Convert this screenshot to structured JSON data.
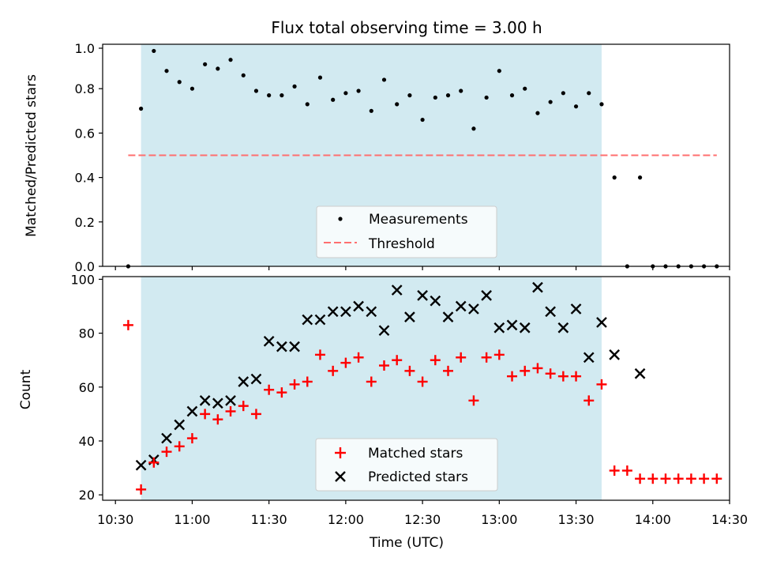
{
  "title": "Flux total observing time = 3.00 h",
  "colors": {
    "band": "#add8e6",
    "threshold": "#ff6f6f",
    "matched": "#ff0000",
    "predicted": "#000000",
    "measurement": "#000000"
  },
  "chart_data": [
    {
      "type": "scatter",
      "ylabel": "Matched/Predicted stars",
      "ylim": [
        0,
        1.0
      ],
      "yticks": [
        "0.0",
        "0.2",
        "0.4",
        "0.6",
        "0.8",
        "1.0"
      ],
      "shaded_band": [
        "10:40",
        "13:40"
      ],
      "legend": "lower-center",
      "series": [
        {
          "name": "Measurements",
          "marker": "dot",
          "x": [
            "10:35",
            "10:40",
            "10:45",
            "10:50",
            "10:55",
            "11:00",
            "11:05",
            "11:10",
            "11:15",
            "11:20",
            "11:25",
            "11:30",
            "11:35",
            "11:40",
            "11:45",
            "11:50",
            "11:55",
            "12:00",
            "12:05",
            "12:10",
            "12:15",
            "12:20",
            "12:25",
            "12:30",
            "12:35",
            "12:40",
            "12:45",
            "12:50",
            "12:55",
            "13:00",
            "13:05",
            "13:10",
            "13:15",
            "13:20",
            "13:25",
            "13:30",
            "13:35",
            "13:40",
            "13:45",
            "13:50",
            "13:55",
            "14:00",
            "14:05",
            "14:10",
            "14:15",
            "14:20",
            "14:25"
          ],
          "y": [
            0.0,
            0.71,
            0.97,
            0.88,
            0.83,
            0.8,
            0.91,
            0.89,
            0.93,
            0.86,
            0.79,
            0.77,
            0.77,
            0.81,
            0.73,
            0.85,
            0.75,
            0.78,
            0.79,
            0.7,
            0.84,
            0.73,
            0.77,
            0.66,
            0.76,
            0.77,
            0.79,
            0.62,
            0.76,
            0.88,
            0.77,
            0.8,
            0.69,
            0.74,
            0.78,
            0.72,
            0.78,
            0.73,
            0.4,
            0.0,
            0.4,
            0.0,
            0.0,
            0.0,
            0.0,
            0.0,
            0.0
          ]
        },
        {
          "name": "Threshold",
          "line": "dashed",
          "x": [
            "10:35",
            "14:25"
          ],
          "y": [
            0.5,
            0.5
          ]
        }
      ]
    },
    {
      "type": "scatter",
      "xlabel": "Time (UTC)",
      "ylabel": "Count",
      "ylim": [
        18,
        101
      ],
      "yticks": [
        "20",
        "40",
        "60",
        "80",
        "100"
      ],
      "xlim": [
        "10:25",
        "14:30"
      ],
      "xticks": [
        "10:30",
        "11:00",
        "11:30",
        "12:00",
        "12:30",
        "13:00",
        "13:30",
        "14:00",
        "14:30"
      ],
      "shaded_band": [
        "10:40",
        "13:40"
      ],
      "legend": "lower-center",
      "series": [
        {
          "name": "Matched stars",
          "marker": "plus",
          "x": [
            "10:35",
            "10:40",
            "10:45",
            "10:50",
            "10:55",
            "11:00",
            "11:05",
            "11:10",
            "11:15",
            "11:20",
            "11:25",
            "11:30",
            "11:35",
            "11:40",
            "11:45",
            "11:50",
            "11:55",
            "12:00",
            "12:05",
            "12:10",
            "12:15",
            "12:20",
            "12:25",
            "12:30",
            "12:35",
            "12:40",
            "12:45",
            "12:50",
            "12:55",
            "13:00",
            "13:05",
            "13:10",
            "13:15",
            "13:20",
            "13:25",
            "13:30",
            "13:35",
            "13:40",
            "13:45",
            "13:50",
            "13:55",
            "14:00",
            "14:05",
            "14:10",
            "14:15",
            "14:20",
            "14:25"
          ],
          "y": [
            83,
            22,
            32,
            36,
            38,
            41,
            50,
            48,
            51,
            53,
            50,
            59,
            58,
            61,
            62,
            72,
            66,
            69,
            71,
            62,
            68,
            70,
            66,
            62,
            70,
            66,
            71,
            55,
            71,
            72,
            64,
            66,
            67,
            65,
            64,
            64,
            55,
            61,
            29,
            29,
            26,
            26,
            26,
            26,
            26,
            26,
            26
          ]
        },
        {
          "name": "Predicted stars",
          "marker": "x",
          "x": [
            "10:40",
            "10:45",
            "10:50",
            "10:55",
            "11:00",
            "11:05",
            "11:10",
            "11:15",
            "11:20",
            "11:25",
            "11:30",
            "11:35",
            "11:40",
            "11:45",
            "11:50",
            "11:55",
            "12:00",
            "12:05",
            "12:10",
            "12:15",
            "12:20",
            "12:25",
            "12:30",
            "12:35",
            "12:40",
            "12:45",
            "12:50",
            "12:55",
            "13:00",
            "13:05",
            "13:10",
            "13:15",
            "13:20",
            "13:25",
            "13:30",
            "13:35",
            "13:40",
            "13:45",
            "13:55"
          ],
          "y": [
            31,
            33,
            41,
            46,
            51,
            55,
            54,
            55,
            62,
            63,
            77,
            75,
            75,
            85,
            85,
            88,
            88,
            90,
            88,
            81,
            96,
            86,
            94,
            92,
            86,
            90,
            89,
            94,
            82,
            83,
            82,
            97,
            88,
            82,
            89,
            71,
            84,
            72,
            65
          ]
        }
      ]
    }
  ]
}
